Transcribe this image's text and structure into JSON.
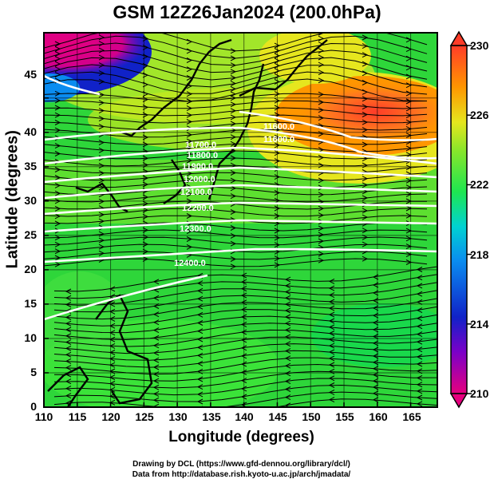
{
  "title": "GSM 12Z26Jan2024 (200.0hPa)",
  "x_axis": {
    "label": "Longitude (degrees)",
    "ticks": [
      "110",
      "115",
      "120",
      "125",
      "130",
      "135",
      "140",
      "145",
      "150",
      "155",
      "160",
      "165"
    ]
  },
  "y_axis": {
    "label": "Latitude  (degrees)",
    "ticks": [
      "0",
      "5",
      "10",
      "15",
      "20",
      "25",
      "30",
      "35",
      "40",
      "45"
    ]
  },
  "colorbar": {
    "ticks": [
      "210",
      "214",
      "218",
      "222",
      "226",
      "230"
    ],
    "colors": [
      "#e6007e",
      "#7a00c8",
      "#1022c8",
      "#0a8cf0",
      "#00d2d2",
      "#1ee650",
      "#8ae62a",
      "#e6e61e",
      "#ff9600",
      "#ff3c28"
    ]
  },
  "contour_labels": [
    "11600.0",
    "11600.0",
    "11700.0",
    "11800.0",
    "11900.0",
    "12000.0",
    "12100.0",
    "12200.0",
    "12300.0",
    "12400.0",
    "12500.0"
  ],
  "credits": [
    "Drawing by DCL (https://www.gfd-dennou.org/library/dcl/)",
    "Data from http://database.rish.kyoto-u.ac.jp/arch/jmadata/"
  ]
}
